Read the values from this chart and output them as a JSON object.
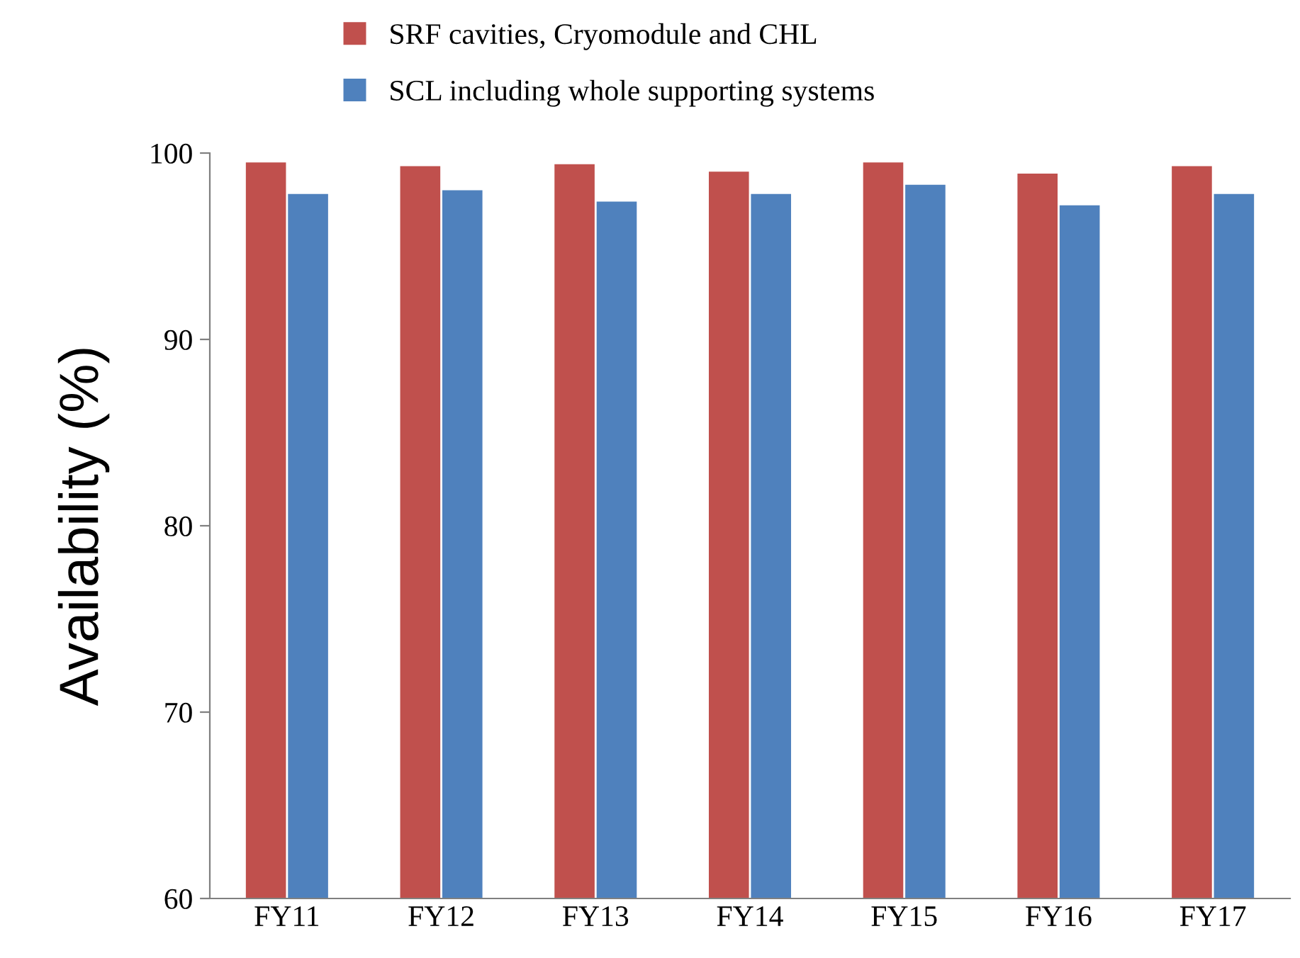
{
  "chart_data": {
    "type": "bar",
    "ylabel": "Availability (%)",
    "categories": [
      "FY11",
      "FY12",
      "FY13",
      "FY14",
      "FY15",
      "FY16",
      "FY17"
    ],
    "series": [
      {
        "name": "SRF cavities, Cryomodule and CHL",
        "color": "#c0504d",
        "values": [
          99.5,
          99.3,
          99.4,
          99.0,
          99.5,
          98.9,
          99.3
        ]
      },
      {
        "name": "SCL including whole supporting systems",
        "color": "#4f81bd",
        "values": [
          97.8,
          98.0,
          97.4,
          97.8,
          98.3,
          97.2,
          97.8
        ]
      }
    ],
    "ylim": [
      60,
      100
    ],
    "yticks": [
      60,
      70,
      80,
      90,
      100
    ],
    "grid": false,
    "legend": "top"
  }
}
